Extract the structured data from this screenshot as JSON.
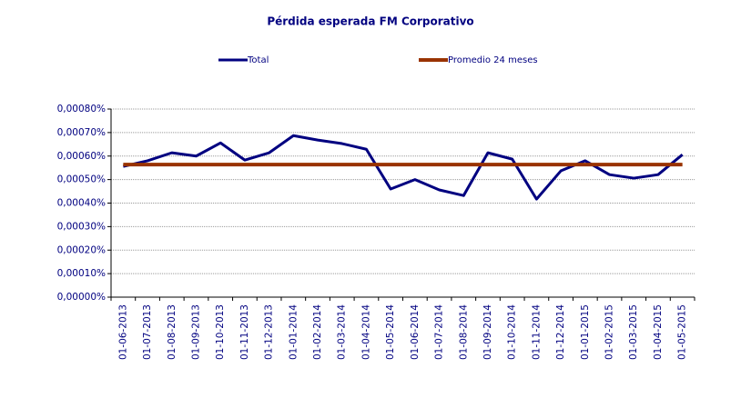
{
  "chart_data": {
    "type": "line",
    "title": "Pérdida esperada FM Corporativo",
    "categories": [
      "01-06-2013",
      "01-07-2013",
      "01-08-2013",
      "01-09-2013",
      "01-10-2013",
      "01-11-2013",
      "01-12-2013",
      "01-01-2014",
      "01-02-2014",
      "01-03-2014",
      "01-04-2014",
      "01-05-2014",
      "01-06-2014",
      "01-07-2014",
      "01-08-2014",
      "01-09-2014",
      "01-10-2014",
      "01-11-2014",
      "01-12-2014",
      "01-01-2015",
      "01-02-2015",
      "01-03-2015",
      "01-04-2015",
      "01-05-2015"
    ],
    "series": [
      {
        "name": "Total",
        "color": "#000080",
        "values": [
          0.000556,
          0.00058,
          0.000614,
          0.0006,
          0.000656,
          0.000583,
          0.000614,
          0.000687,
          0.000668,
          0.000653,
          0.000629,
          0.00046,
          0.0005,
          0.000456,
          0.000432,
          0.000614,
          0.000587,
          0.000417,
          0.000537,
          0.00058,
          0.000521,
          0.000506,
          0.000521,
          0.000606
        ]
      },
      {
        "name": "Promedio 24 meses",
        "color": "#993300",
        "values": [
          0.000564,
          0.000564,
          0.000564,
          0.000564,
          0.000564,
          0.000564,
          0.000564,
          0.000564,
          0.000564,
          0.000564,
          0.000564,
          0.000564,
          0.000564,
          0.000564,
          0.000564,
          0.000564,
          0.000564,
          0.000564,
          0.000564,
          0.000564,
          0.000564,
          0.000564,
          0.000564,
          0.000564
        ]
      }
    ],
    "ylim": [
      0,
      0.0008
    ],
    "yticks": [
      {
        "value": 0,
        "label": "0,00000%"
      },
      {
        "value": 0.0001,
        "label": "0,00010%"
      },
      {
        "value": 0.0002,
        "label": "0,00020%"
      },
      {
        "value": 0.0003,
        "label": "0,00030%"
      },
      {
        "value": 0.0004,
        "label": "0,00040%"
      },
      {
        "value": 0.0005,
        "label": "0,00050%"
      },
      {
        "value": 0.0006,
        "label": "0,00060%"
      },
      {
        "value": 0.0007,
        "label": "0,00070%"
      },
      {
        "value": 0.0008,
        "label": "0,00080%"
      }
    ],
    "grid": true,
    "legend": "top"
  }
}
